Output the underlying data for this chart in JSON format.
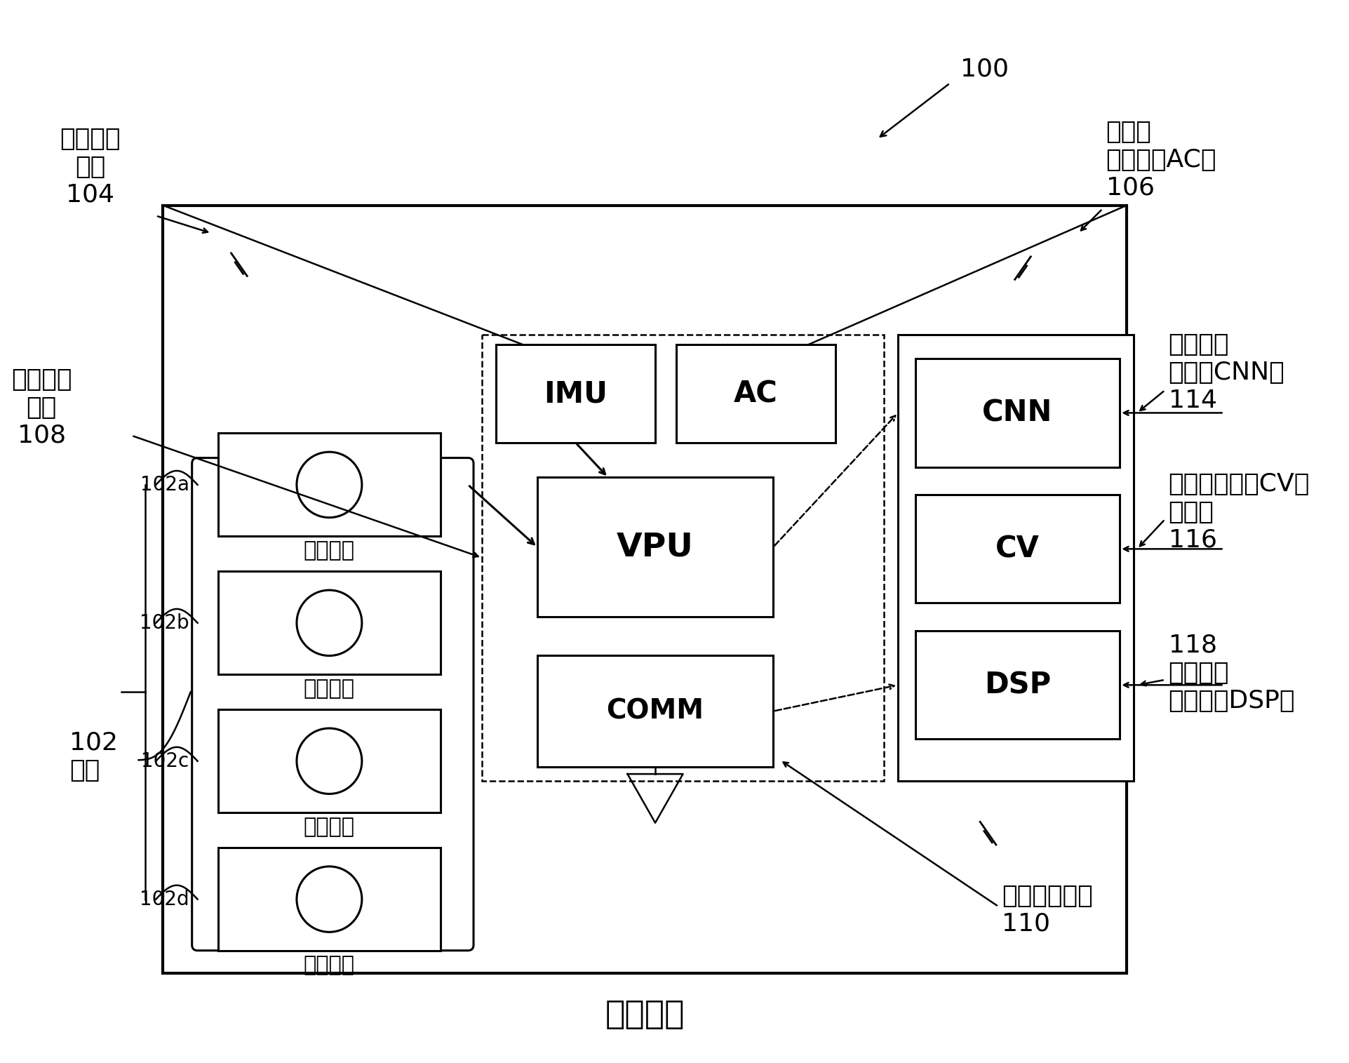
{
  "bg_color": "#ffffff",
  "line_color": "#000000",
  "labels": {
    "fig_num": "100",
    "imu_box": "IMU",
    "ac_box": "AC",
    "vpu_box": "VPU",
    "comm_box": "COMM",
    "cnn_box": "CNN",
    "cv_box": "CV",
    "dsp_box": "DSP",
    "imu_label_line1": "惯性测量",
    "imu_label_line2": "单元",
    "imu_label_num": "104",
    "ac_label_line1": "音频编",
    "ac_label_line2": "解码器（AC）",
    "ac_label_num": "106",
    "vpu_label_line1": "视觉处理",
    "vpu_label_line2": "单元",
    "vpu_label_num": "108",
    "cnn_label_line1": "卷积神经",
    "cnn_label_line2": "网络（CNN）",
    "cnn_label_num": "114",
    "cv_label_line1": "计算机视觉（CV）",
    "cv_label_line2": "分析器",
    "cv_label_num": "116",
    "dsp_label_num": "118",
    "dsp_label_line1": "数字信号",
    "dsp_label_line2": "处理器（DSP）",
    "comm_label_line1": "无线通信接口",
    "comm_label_num": "110",
    "cam_label": "相机",
    "cam_num": "102",
    "mobile_camera": "移动相机",
    "low_res": "低分辨率",
    "high_res": "高分辨率",
    "cam_102a": "102a",
    "cam_102b": "102b",
    "cam_102c": "102c",
    "cam_102d": "102d"
  },
  "font_family": "SimHei",
  "font_family_fallback": "DejaVu Sans"
}
